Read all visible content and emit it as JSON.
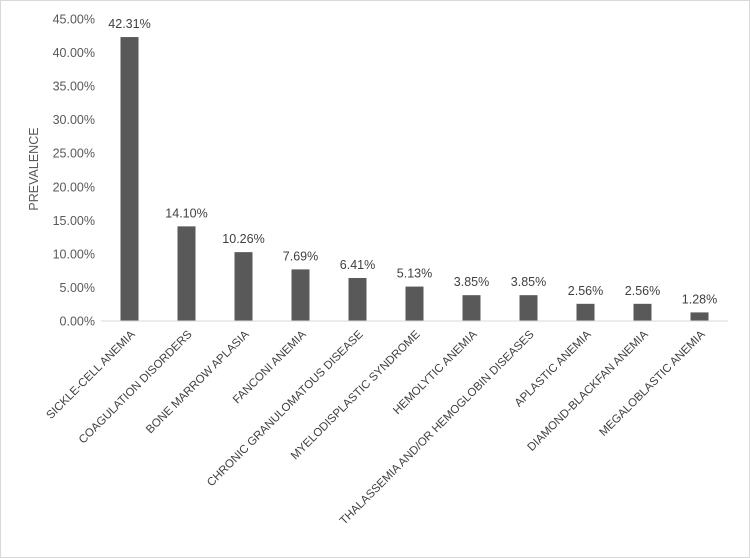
{
  "chart_data": {
    "type": "bar",
    "title": "",
    "xlabel": "",
    "ylabel": "PREVALENCE",
    "ylim": [
      0,
      45
    ],
    "yticks": [
      "0.00%",
      "5.00%",
      "10.00%",
      "15.00%",
      "20.00%",
      "25.00%",
      "30.00%",
      "35.00%",
      "40.00%",
      "45.00%"
    ],
    "grid": false,
    "legend": "none",
    "categories": [
      "SICKLE-CELL ANEMIA",
      "COAGULATION DISORDERS",
      "BONE MARROW APLASIA",
      "FANCONI ANEMIA",
      "CHRONIC GRANULOMATOUS DISEASE",
      "MYELODISPLASTIC SYNDROME",
      "HEMOLYTIC ANEMIA",
      "THALASSEMIA AND/OR HEMOGLOBIN DISEASES",
      "APLASTIC ANEMIA",
      "DIAMOND-BLACKFAN ANEMIA",
      "MEGALOBLASTIC ANEMIA"
    ],
    "values": [
      42.31,
      14.1,
      10.26,
      7.69,
      6.41,
      5.13,
      3.85,
      3.85,
      2.56,
      2.56,
      1.28
    ],
    "data_labels": [
      "42.31%",
      "14.10%",
      "10.26%",
      "7.69%",
      "6.41%",
      "5.13%",
      "3.85%",
      "3.85%",
      "2.56%",
      "2.56%",
      "1.28%"
    ],
    "colors": {
      "bar": "#595959",
      "axis": "#d9d9d9",
      "border": "#d9d9d9"
    }
  }
}
